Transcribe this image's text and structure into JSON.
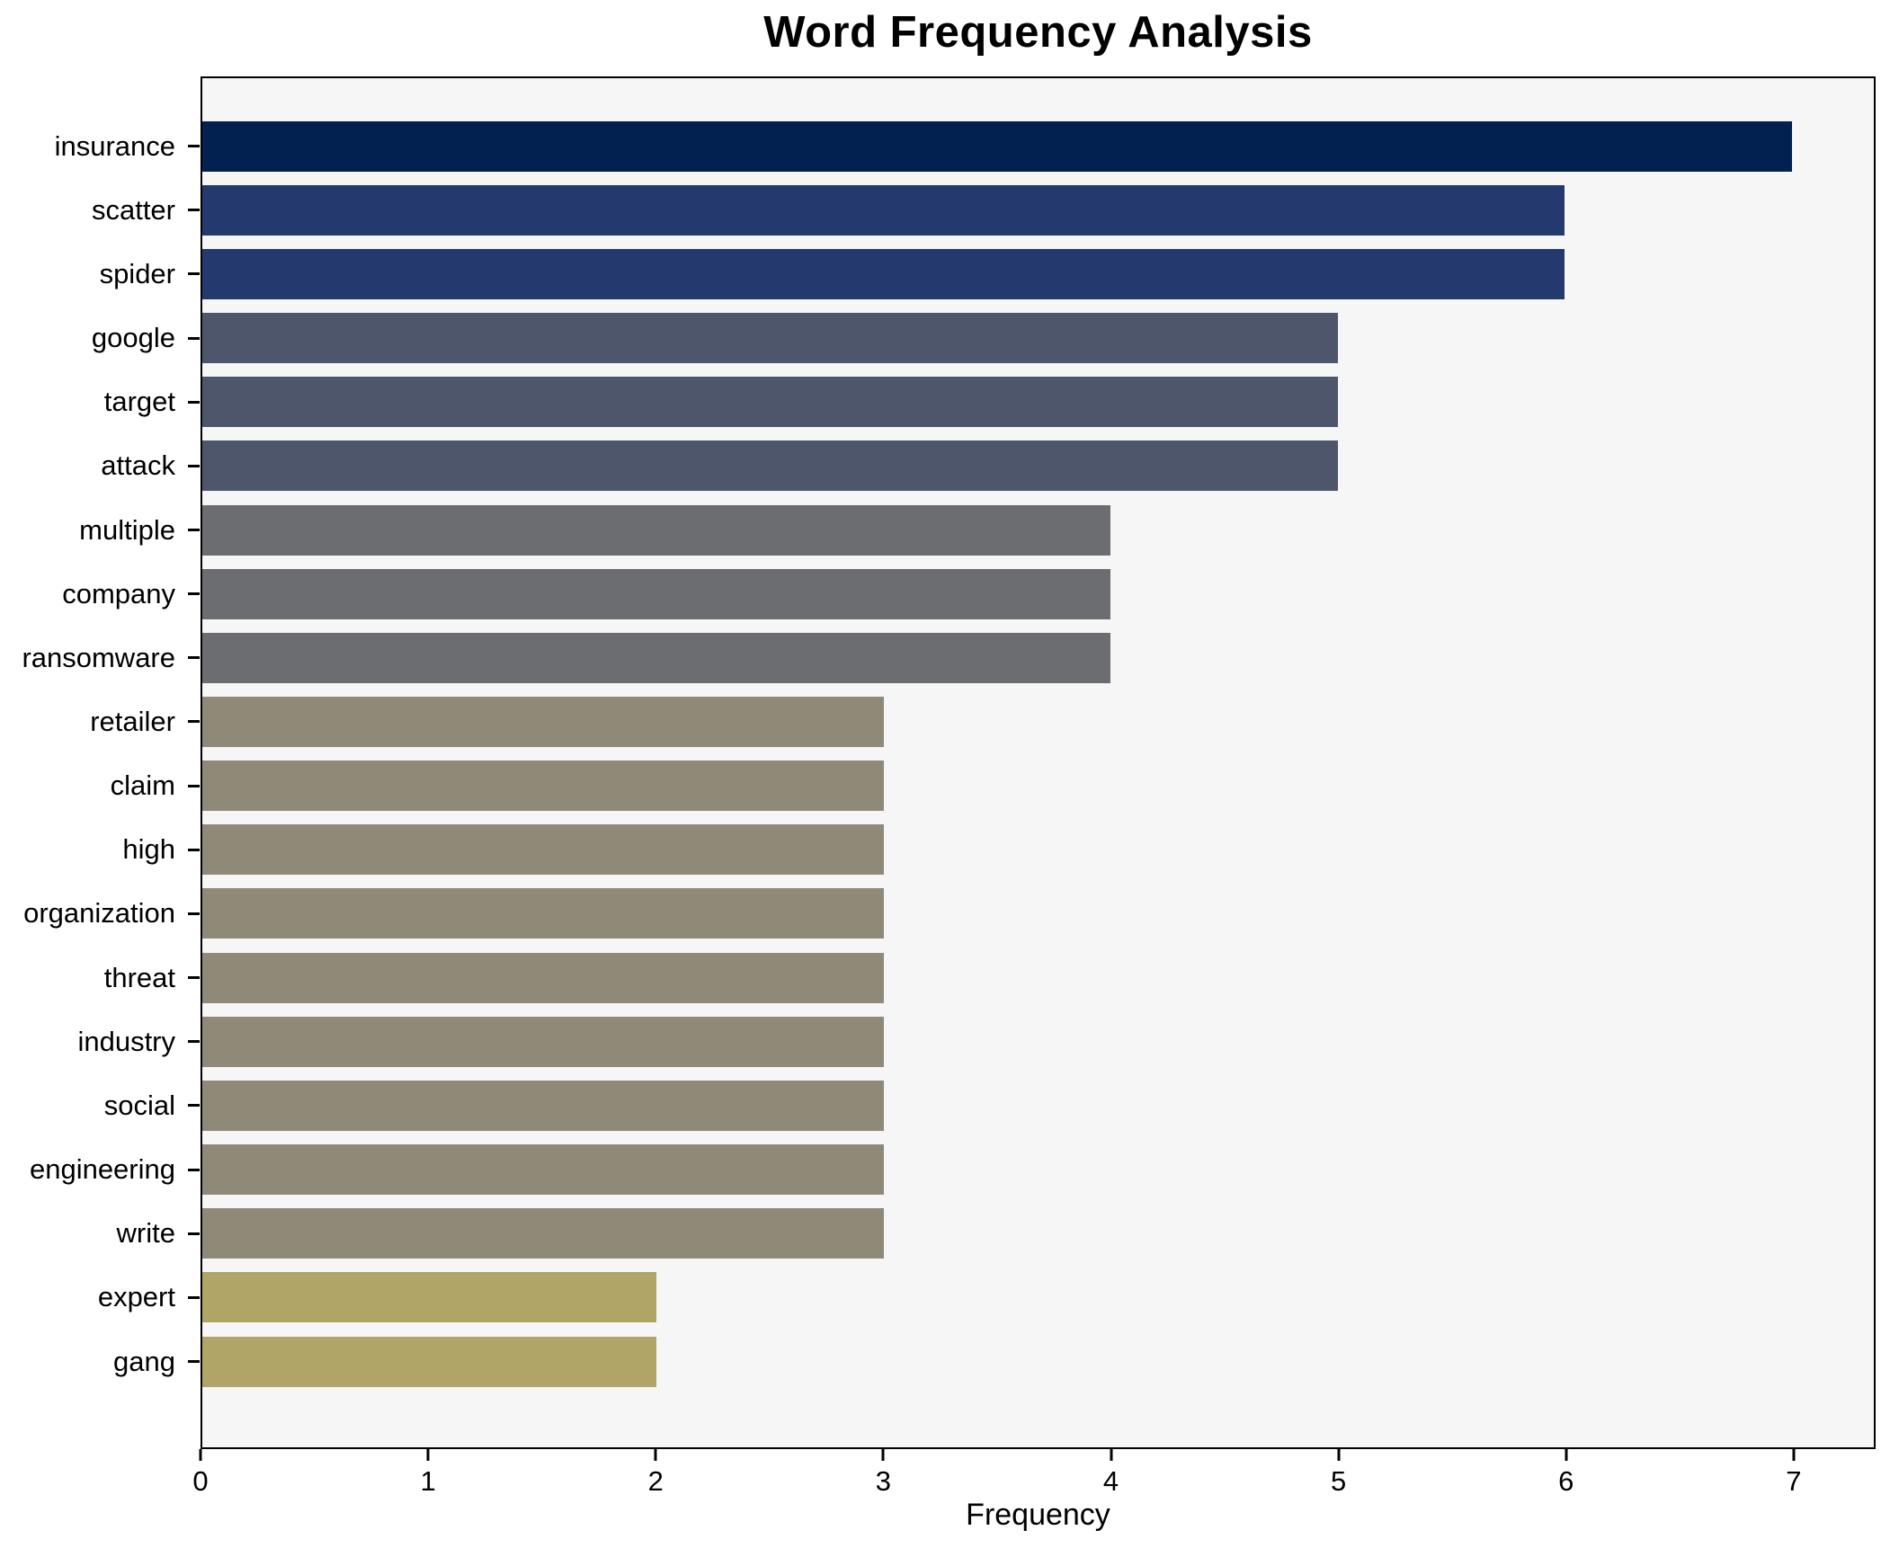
{
  "chart_data": {
    "type": "bar",
    "orientation": "horizontal",
    "title": "Word Frequency Analysis",
    "xlabel": "Frequency",
    "ylabel": "",
    "categories": [
      "insurance",
      "scatter",
      "spider",
      "google",
      "target",
      "attack",
      "multiple",
      "company",
      "ransomware",
      "retailer",
      "claim",
      "high",
      "organization",
      "threat",
      "industry",
      "social",
      "engineering",
      "write",
      "expert",
      "gang"
    ],
    "values": [
      7,
      6,
      6,
      5,
      5,
      5,
      4,
      4,
      4,
      3,
      3,
      3,
      3,
      3,
      3,
      3,
      3,
      3,
      2,
      2
    ],
    "bar_colors": [
      "#022150",
      "#243a6e",
      "#243a6e",
      "#4d566b",
      "#4d566b",
      "#4d566b",
      "#6c6d71",
      "#6c6d71",
      "#6c6d71",
      "#8f8977",
      "#8f8977",
      "#8f8977",
      "#8f8977",
      "#8f8977",
      "#8f8977",
      "#8f8977",
      "#8f8977",
      "#8f8977",
      "#b0a466",
      "#b0a466"
    ],
    "xticks": [
      0,
      1,
      2,
      3,
      4,
      5,
      6,
      7
    ],
    "xlim": [
      0,
      7.36
    ],
    "grid": false,
    "legend": null,
    "plot_background": "#f6f6f7",
    "figure_background": "#ffffff",
    "spine_color": "#000000"
  }
}
